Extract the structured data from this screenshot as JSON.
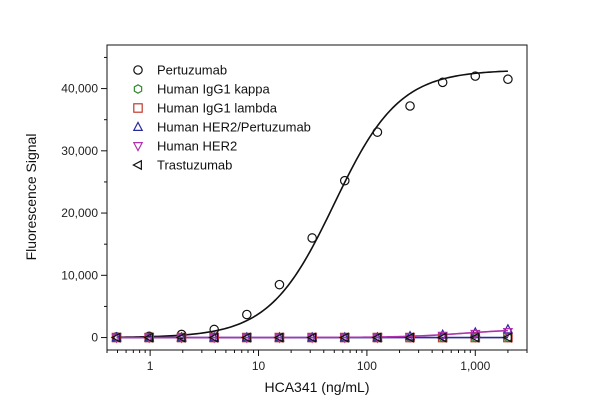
{
  "chart_data": {
    "type": "scatter",
    "xlabel": "HCA341 (ng/mL)",
    "ylabel": "Fluorescence Signal",
    "xscale": "log",
    "xlim": [
      0.4,
      3000
    ],
    "ylim": [
      -2000,
      47000
    ],
    "x_ticks": [
      1,
      10,
      100,
      1000
    ],
    "x_tick_labels": [
      "1",
      "10",
      "100",
      "1,000"
    ],
    "y_ticks": [
      0,
      10000,
      20000,
      30000,
      40000
    ],
    "y_tick_labels": [
      "0",
      "10,000",
      "20,000",
      "30,000",
      "40,000"
    ],
    "grid": false,
    "legend_position": "top-left",
    "x": [
      0.49,
      0.98,
      1.95,
      3.9,
      7.8,
      15.6,
      31.25,
      62.5,
      125,
      250,
      500,
      1000,
      2000
    ],
    "series": [
      {
        "name": "Pertuzumab",
        "marker": "circle",
        "color": "#111111",
        "values": [
          100,
          200,
          500,
          1300,
          3700,
          8500,
          16000,
          25200,
          33000,
          37200,
          41000,
          42000,
          41500
        ]
      },
      {
        "name": "Human IgG1 kappa",
        "marker": "hexagon",
        "color": "#2e8b2e",
        "values": [
          0,
          0,
          0,
          0,
          0,
          0,
          0,
          0,
          0,
          0,
          0,
          0,
          0
        ]
      },
      {
        "name": "Human IgG1 lambda",
        "marker": "square",
        "color": "#c0392b",
        "values": [
          0,
          0,
          0,
          0,
          0,
          0,
          0,
          0,
          0,
          0,
          0,
          0,
          0
        ]
      },
      {
        "name": "Human HER2/Pertuzumab",
        "marker": "triangle-up",
        "color": "#2a2a9e",
        "values": [
          0,
          0,
          0,
          0,
          0,
          0,
          0,
          0,
          0,
          200,
          450,
          800,
          1300
        ]
      },
      {
        "name": "Human HER2",
        "marker": "triangle-down",
        "color": "#b030b0",
        "values": [
          0,
          0,
          0,
          0,
          0,
          0,
          0,
          0,
          0,
          100,
          300,
          600,
          900
        ]
      },
      {
        "name": "Trastuzumab",
        "marker": "triangle-left",
        "color": "#111111",
        "values": [
          0,
          0,
          0,
          0,
          0,
          0,
          0,
          0,
          0,
          0,
          0,
          0,
          0
        ]
      }
    ],
    "fit_curves": [
      {
        "series": "Pertuzumab",
        "model": "4PL",
        "bottom": 0,
        "top": 43000,
        "ec50": 50,
        "hill": 1.45,
        "color": "#111111"
      },
      {
        "series": "Human HER2",
        "model": "4PL",
        "bottom": 0,
        "top": 1400,
        "ec50": 800,
        "hill": 1.5,
        "color": "#b030b0"
      }
    ]
  }
}
